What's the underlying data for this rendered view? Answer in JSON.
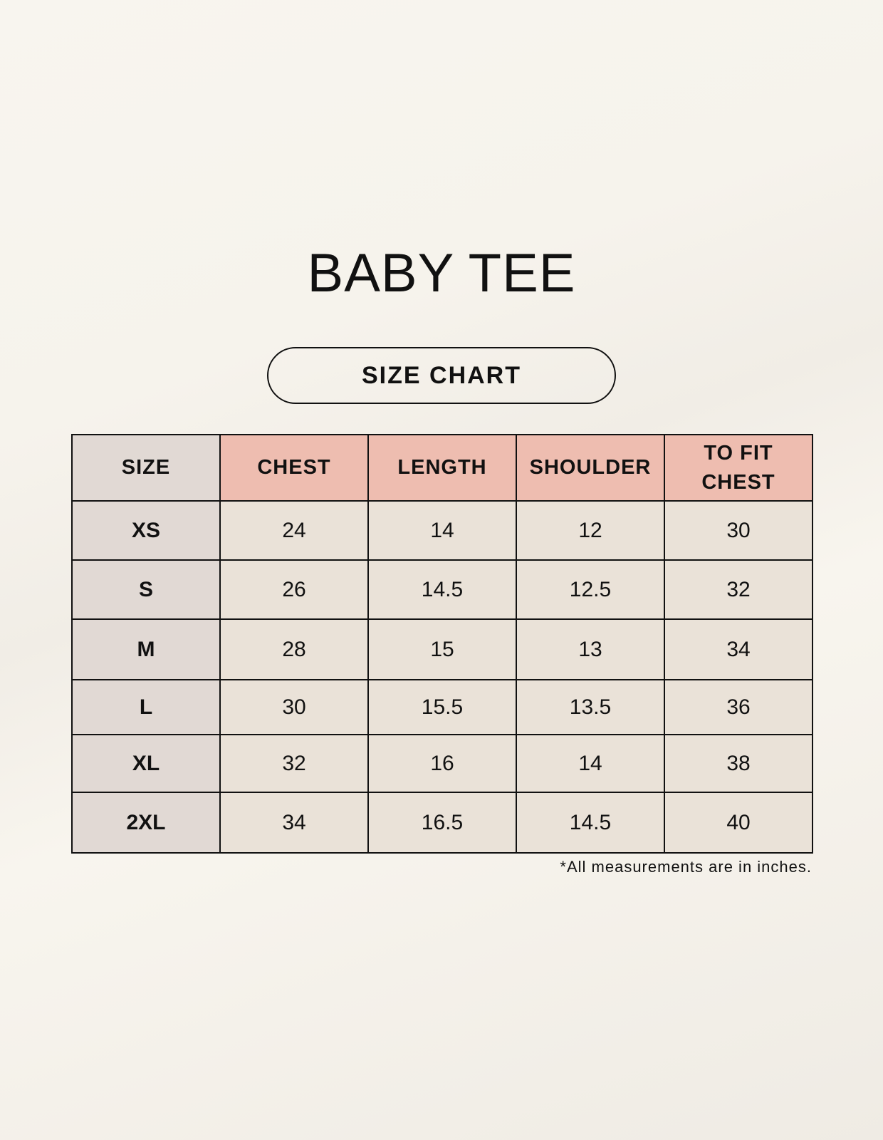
{
  "title": "BABY TEE",
  "subtitle": "SIZE CHART",
  "colors": {
    "header": "#eebdb0",
    "size_column": "#e1d9d4",
    "cell": "#eae2d8"
  },
  "table": {
    "headers": [
      "SIZE",
      "CHEST",
      "LENGTH",
      "SHOULDER",
      "TO FIT CHEST"
    ],
    "rows": [
      [
        "XS",
        "24",
        "14",
        "12",
        "30"
      ],
      [
        "S",
        "26",
        "14.5",
        "12.5",
        "32"
      ],
      [
        "M",
        "28",
        "15",
        "13",
        "34"
      ],
      [
        "L",
        "30",
        "15.5",
        "13.5",
        "36"
      ],
      [
        "XL",
        "32",
        "16",
        "14",
        "38"
      ],
      [
        "2XL",
        "34",
        "16.5",
        "14.5",
        "40"
      ]
    ]
  },
  "footnote": "*All measurements are in inches."
}
